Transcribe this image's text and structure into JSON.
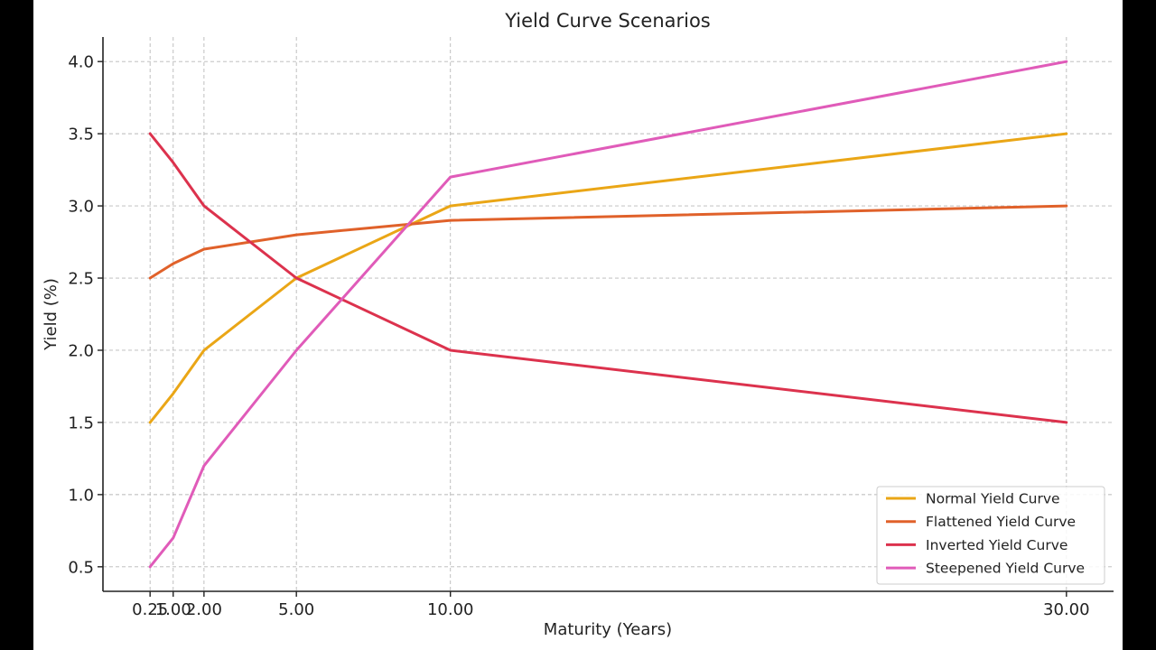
{
  "chart_data": {
    "type": "line",
    "title": "Yield Curve Scenarios",
    "xlabel": "Maturity (Years)",
    "ylabel": "Yield (%)",
    "x": [
      0.25,
      1.0,
      2.0,
      5.0,
      10.0,
      30.0
    ],
    "x_tick_labels": [
      "0.25",
      "1.00",
      "2.00",
      "5.00",
      "10.00",
      "30.00"
    ],
    "y_ticks": [
      0.5,
      1.0,
      1.5,
      2.0,
      2.5,
      3.0,
      3.5,
      4.0
    ],
    "y_tick_labels": [
      "0.5",
      "1.0",
      "1.5",
      "2.0",
      "2.5",
      "3.0",
      "3.5",
      "4.0"
    ],
    "xlim": [
      -1.28,
      31.53
    ],
    "ylim": [
      0.33,
      4.17
    ],
    "grid": true,
    "legend_position": "lower right",
    "series": [
      {
        "name": "Normal Yield Curve",
        "color": "#eaa616",
        "values": [
          1.5,
          1.7,
          2.0,
          2.5,
          3.0,
          3.5
        ]
      },
      {
        "name": "Flattened Yield Curve",
        "color": "#e0612a",
        "values": [
          2.5,
          2.6,
          2.7,
          2.8,
          2.9,
          3.0
        ]
      },
      {
        "name": "Inverted Yield Curve",
        "color": "#dc324d",
        "values": [
          3.5,
          3.3,
          3.0,
          2.5,
          2.0,
          1.5
        ]
      },
      {
        "name": "Steepened Yield Curve",
        "color": "#e05bb9",
        "values": [
          0.5,
          0.7,
          1.2,
          2.0,
          3.2,
          4.0
        ]
      }
    ]
  }
}
